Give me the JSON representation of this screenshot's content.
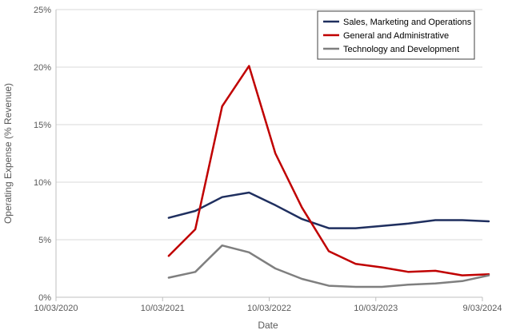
{
  "chart_data": {
    "type": "line",
    "xlabel": "Date",
    "ylabel": "Operating Expense (% Revenue)",
    "x_ticks": [
      "10/03/2020",
      "10/03/2021",
      "10/03/2022",
      "10/03/2023",
      "9/03/2024"
    ],
    "y_ticks": [
      "0%",
      "5%",
      "10%",
      "15%",
      "20%",
      "25%"
    ],
    "xlim": [
      "2020-03-10",
      "2024-03-09"
    ],
    "ylim": [
      0,
      25
    ],
    "grid": "horizontal",
    "legend_position": "top-right",
    "series": [
      {
        "name": "Sales, Marketing and Operations",
        "color": "#1f2f5f",
        "points": [
          {
            "x": "2021-03-31",
            "y": 6.9
          },
          {
            "x": "2021-06-30",
            "y": 7.5
          },
          {
            "x": "2021-09-30",
            "y": 8.7
          },
          {
            "x": "2021-12-31",
            "y": 9.1
          },
          {
            "x": "2022-03-31",
            "y": 8.0
          },
          {
            "x": "2022-06-30",
            "y": 6.8
          },
          {
            "x": "2022-09-30",
            "y": 6.0
          },
          {
            "x": "2022-12-31",
            "y": 6.0
          },
          {
            "x": "2023-03-31",
            "y": 6.2
          },
          {
            "x": "2023-06-30",
            "y": 6.4
          },
          {
            "x": "2023-09-30",
            "y": 6.7
          },
          {
            "x": "2023-12-31",
            "y": 6.7
          },
          {
            "x": "2024-03-31",
            "y": 6.6
          }
        ]
      },
      {
        "name": "General and Administrative",
        "color": "#c00000",
        "points": [
          {
            "x": "2021-03-31",
            "y": 3.6
          },
          {
            "x": "2021-06-30",
            "y": 5.9
          },
          {
            "x": "2021-09-30",
            "y": 16.6
          },
          {
            "x": "2021-12-31",
            "y": 20.1
          },
          {
            "x": "2022-03-31",
            "y": 12.5
          },
          {
            "x": "2022-06-30",
            "y": 7.8
          },
          {
            "x": "2022-09-30",
            "y": 4.0
          },
          {
            "x": "2022-12-31",
            "y": 2.9
          },
          {
            "x": "2023-03-31",
            "y": 2.6
          },
          {
            "x": "2023-06-30",
            "y": 2.2
          },
          {
            "x": "2023-09-30",
            "y": 2.3
          },
          {
            "x": "2023-12-31",
            "y": 1.9
          },
          {
            "x": "2024-03-31",
            "y": 2.0
          }
        ]
      },
      {
        "name": "Technology and Development",
        "color": "#7f7f7f",
        "points": [
          {
            "x": "2021-03-31",
            "y": 1.7
          },
          {
            "x": "2021-06-30",
            "y": 2.2
          },
          {
            "x": "2021-09-30",
            "y": 4.5
          },
          {
            "x": "2021-12-31",
            "y": 3.9
          },
          {
            "x": "2022-03-31",
            "y": 2.5
          },
          {
            "x": "2022-06-30",
            "y": 1.6
          },
          {
            "x": "2022-09-30",
            "y": 1.0
          },
          {
            "x": "2022-12-31",
            "y": 0.9
          },
          {
            "x": "2023-03-31",
            "y": 0.9
          },
          {
            "x": "2023-06-30",
            "y": 1.1
          },
          {
            "x": "2023-09-30",
            "y": 1.2
          },
          {
            "x": "2023-12-31",
            "y": 1.4
          },
          {
            "x": "2024-03-31",
            "y": 1.9
          }
        ]
      }
    ]
  }
}
